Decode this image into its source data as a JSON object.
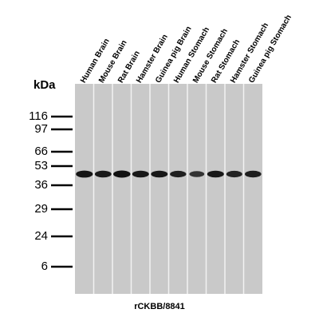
{
  "lanes": [
    "Human Brain",
    "Mouse Brain",
    "Rat Brain",
    "Hamster Brain",
    "Guinea pig Brain",
    "Human Stomach",
    "Mouse Stomach",
    "Rat Stomach",
    "Hamster Stomach",
    "Guinea pig Stomach"
  ],
  "band_intensity": [
    0.95,
    0.88,
    1.0,
    0.9,
    0.92,
    0.82,
    0.6,
    0.9,
    0.78,
    0.85
  ],
  "y_axis_label": "kDa",
  "markers": [
    "116",
    "97",
    "66",
    "53",
    "36",
    "29",
    "24",
    "6"
  ],
  "antibody_label": "rCKBB/8841",
  "colors": {
    "membrane": "#c9c9c9",
    "lane_separator": "#f2f2f2",
    "band": "#111111",
    "marker_line": "#000000"
  }
}
